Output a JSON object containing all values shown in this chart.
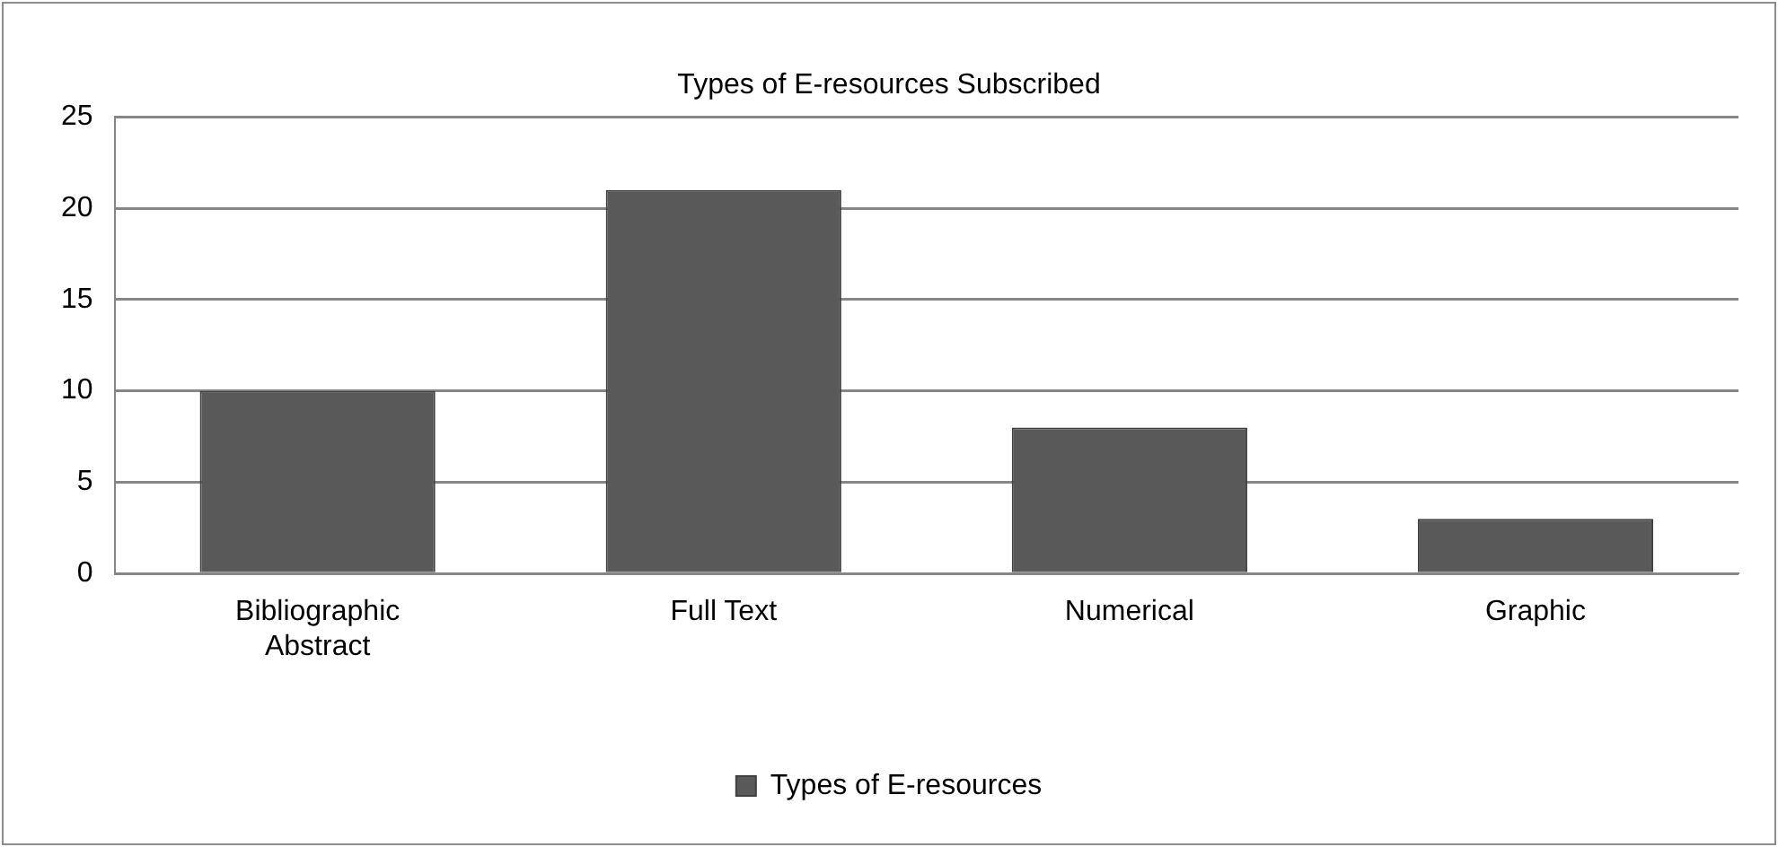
{
  "chart_data": {
    "type": "bar",
    "title": "Types of E-resources Subscribed",
    "categories": [
      "Bibliographic Abstract",
      "Full Text",
      "Numerical",
      "Graphic"
    ],
    "series": [
      {
        "name": "Types of E-resources",
        "color": "#595959",
        "values": [
          10,
          21,
          8,
          3
        ]
      }
    ],
    "ylim": [
      0,
      25
    ],
    "yticks": [
      0,
      5,
      10,
      15,
      20,
      25
    ],
    "grid": "y",
    "legend": "bottom"
  }
}
